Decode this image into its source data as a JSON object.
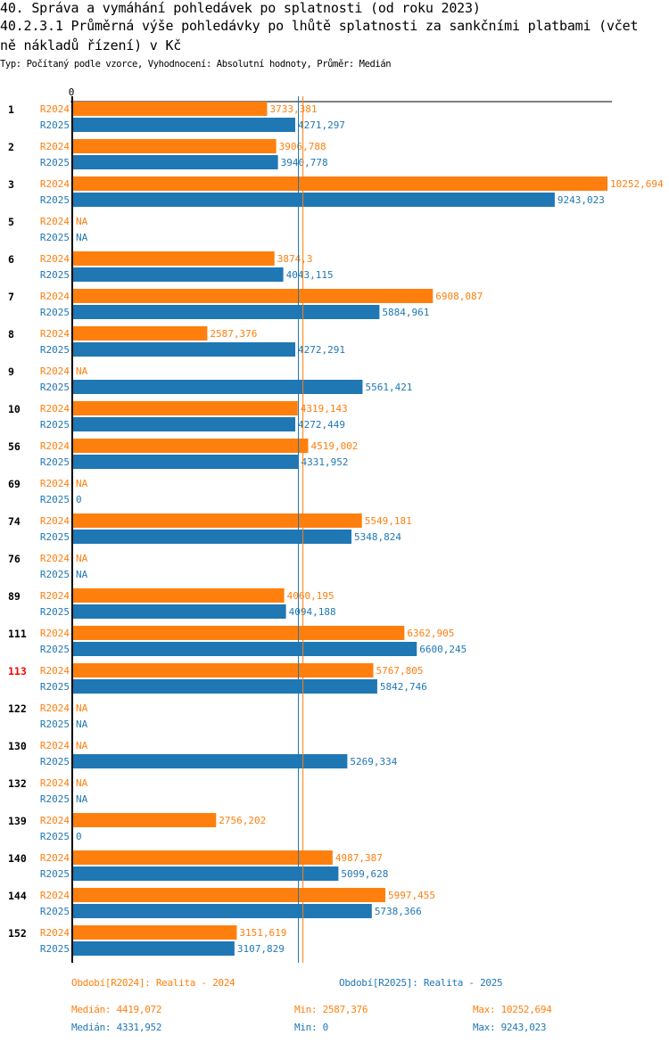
{
  "header": {
    "title_line1": "40. Správa a vymáhání pohledávek po splatnosti (od roku 2023)",
    "title_line2": "40.2.3.1 Průměrná výše pohledávky po lhůtě splatnosti za sankčními platbami (včet",
    "title_line3": "ně nákladů řízení) v Kč",
    "subtitle": "Typ: Počítaný podle vzorce, Vyhodnocení: Absolutní hodnoty, Průměr: Medián"
  },
  "colors": {
    "R2024": "#ff7f0e",
    "R2025": "#1f77b4",
    "highlight_group": "#ff0000",
    "axis": "#000000"
  },
  "chart_data": {
    "type": "bar",
    "orientation": "horizontal",
    "title": "40.2.3.1 Průměrná výše pohledávky po lhůtě splatnosti za sankčními platbami (včetně nákladů řízení) v Kč",
    "xlabel": "",
    "ylabel": "",
    "xlim": [
      0,
      10252.694
    ],
    "x_tick_labels": [
      "0"
    ],
    "grid": false,
    "decimal_separator": ",",
    "highlighted_category": "113",
    "categories": [
      "1",
      "2",
      "3",
      "5",
      "6",
      "7",
      "8",
      "9",
      "10",
      "56",
      "69",
      "74",
      "76",
      "89",
      "111",
      "113",
      "122",
      "130",
      "132",
      "139",
      "140",
      "144",
      "152"
    ],
    "series": [
      {
        "name": "R2024",
        "values": [
          3733.381,
          3906.788,
          10252.694,
          null,
          3874.3,
          6908.087,
          2587.376,
          null,
          4319.143,
          4519.002,
          null,
          5549.181,
          null,
          4060.195,
          6362.905,
          5767.805,
          null,
          null,
          null,
          2756.202,
          4987.387,
          5997.455,
          3151.619
        ],
        "labels": [
          "3733,381",
          "3906,788",
          "10252,694",
          "NA",
          "3874,3",
          "6908,087",
          "2587,376",
          "NA",
          "4319,143",
          "4519,002",
          "NA",
          "5549,181",
          "NA",
          "4060,195",
          "6362,905",
          "5767,805",
          "NA",
          "NA",
          "NA",
          "2756,202",
          "4987,387",
          "5997,455",
          "3151,619"
        ],
        "median": 4419.072
      },
      {
        "name": "R2025",
        "values": [
          4271.297,
          3940.778,
          9243.023,
          null,
          4043.115,
          5884.961,
          4272.291,
          5561.421,
          4272.449,
          4331.952,
          0,
          5348.824,
          null,
          4094.188,
          6600.245,
          5842.746,
          null,
          5269.334,
          null,
          0,
          5099.628,
          5738.366,
          3107.829
        ],
        "labels": [
          "4271,297",
          "3940,778",
          "9243,023",
          "NA",
          "4043,115",
          "5884,961",
          "4272,291",
          "5561,421",
          "4272,449",
          "4331,952",
          "0",
          "5348,824",
          "NA",
          "4094,188",
          "6600,245",
          "5842,746",
          "NA",
          "5269,334",
          "NA",
          "0",
          "5099,628",
          "5738,366",
          "3107,829"
        ],
        "median": 4331.952
      }
    ],
    "legend": {
      "placement": "bottom",
      "entries": [
        {
          "series": "R2024",
          "text": "Období[R2024]: Realita - 2024"
        },
        {
          "series": "R2025",
          "text": "Období[R2025]: Realita - 2025"
        }
      ]
    },
    "stats": {
      "R2024": {
        "median": "Medián: 4419,072",
        "min": "Min: 2587,376",
        "max": "Max: 10252,694"
      },
      "R2025": {
        "median": "Medián: 4331,952",
        "min": "Min: 0",
        "max": "Max: 9243,023"
      }
    }
  }
}
